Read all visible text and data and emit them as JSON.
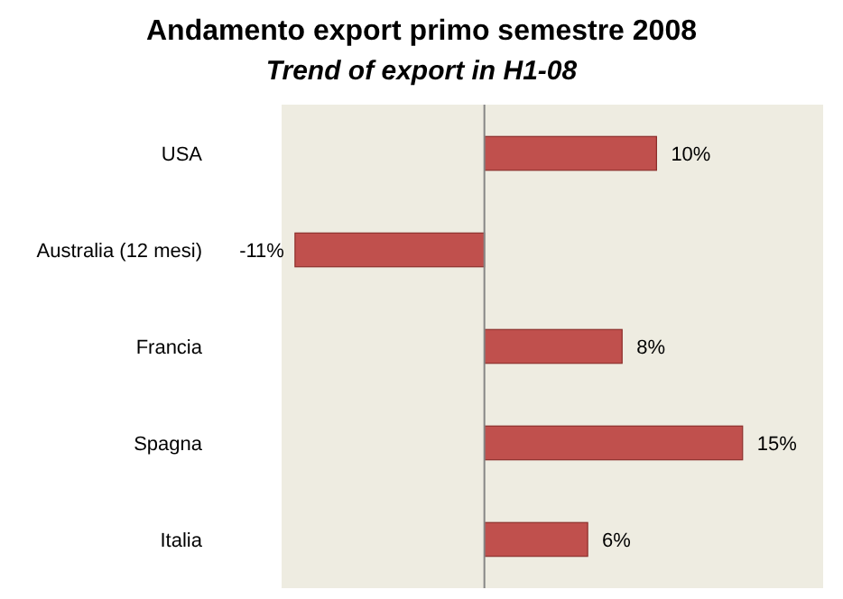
{
  "chart_data": {
    "type": "bar",
    "orientation": "horizontal",
    "title": "Andamento export primo semestre 2008",
    "subtitle": "Trend of export in H1-08",
    "categories": [
      "USA",
      "Australia (12 mesi)",
      "Francia",
      "Spagna",
      "Italia"
    ],
    "values": [
      10,
      -11,
      8,
      15,
      6
    ],
    "value_labels": [
      "10%",
      "-11%",
      "8%",
      "15%",
      "6%"
    ],
    "color": "#c0504d"
  }
}
